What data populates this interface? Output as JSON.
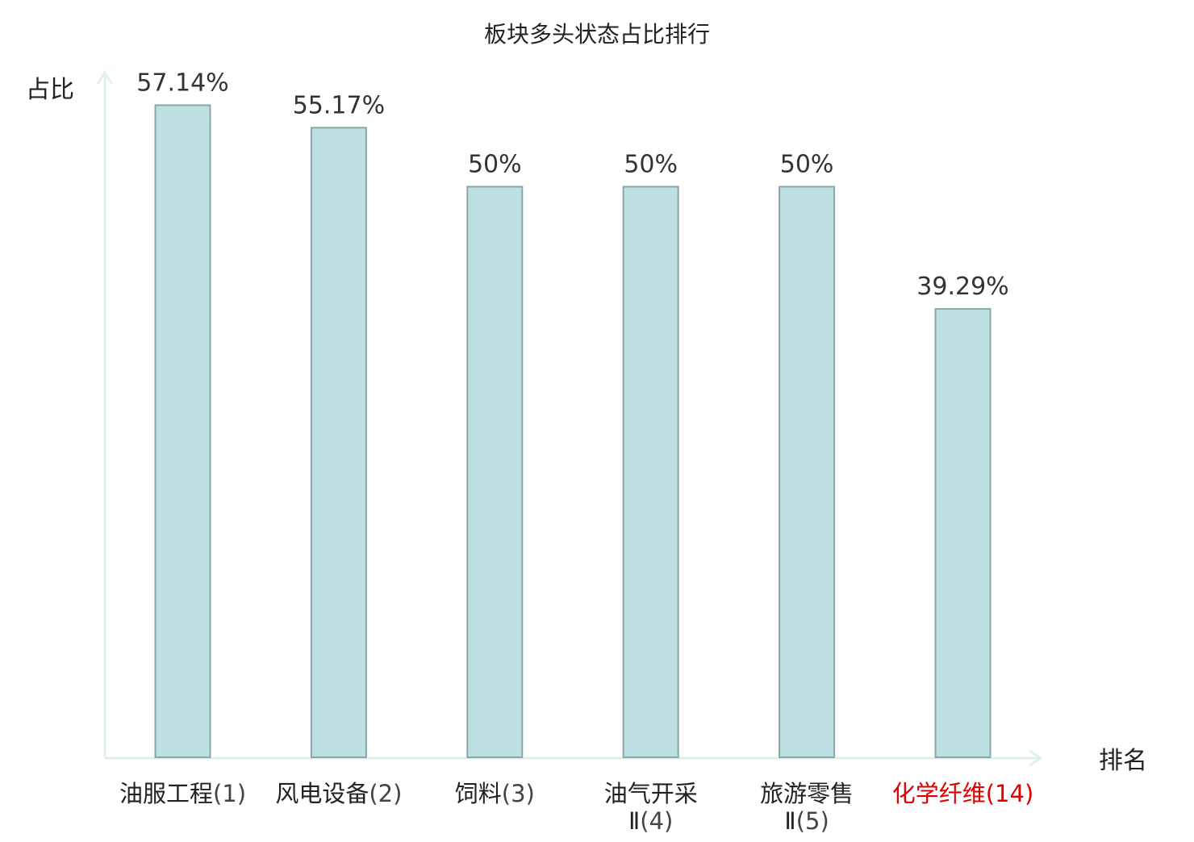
{
  "chart_data": {
    "type": "bar",
    "title": "板块多头状态占比排行",
    "ylabel": "占比",
    "xlabel": "排名",
    "ylim": [
      0,
      60
    ],
    "grid": false,
    "categories": [
      {
        "name_lines": [
          "油服工程"
        ],
        "rank_suffix": "(1)",
        "highlight": false
      },
      {
        "name_lines": [
          "风电设备"
        ],
        "rank_suffix": "(2)",
        "highlight": false
      },
      {
        "name_lines": [
          "饲料"
        ],
        "rank_suffix": "(3)",
        "highlight": false
      },
      {
        "name_lines": [
          "油气开采",
          "Ⅱ"
        ],
        "rank_suffix": "(4)",
        "highlight": false
      },
      {
        "name_lines": [
          "旅游零售",
          "Ⅱ"
        ],
        "rank_suffix": "(5)",
        "highlight": false
      },
      {
        "name_lines": [
          "化学纤维"
        ],
        "rank_suffix": "(14)",
        "highlight": true
      }
    ],
    "values": [
      57.14,
      55.17,
      50,
      50,
      50,
      39.29
    ],
    "value_labels": [
      "57.14%",
      "55.17%",
      "50%",
      "50%",
      "50%",
      "39.29%"
    ],
    "colors": {
      "bar_fill": "#bde0e3",
      "bar_stroke": "#86a8ab",
      "axis": "#dff0ee",
      "text": "#222222",
      "label_text": "#333333",
      "highlight": "#e00000"
    }
  }
}
